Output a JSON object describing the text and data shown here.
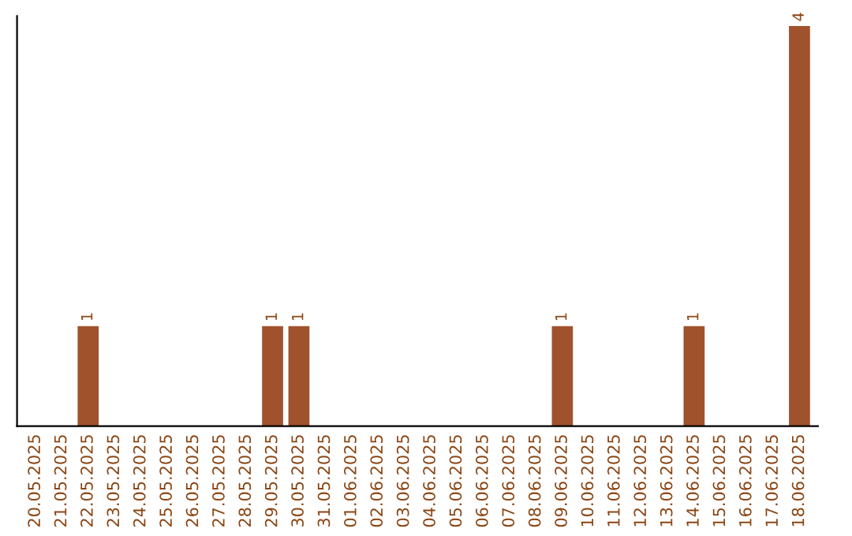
{
  "chart_data": {
    "type": "bar",
    "categories": [
      "20.05.2025",
      "21.05.2025",
      "22.05.2025",
      "23.05.2025",
      "24.05.2025",
      "25.05.2025",
      "26.05.2025",
      "27.05.2025",
      "28.05.2025",
      "29.05.2025",
      "30.05.2025",
      "31.05.2025",
      "01.06.2025",
      "02.06.2025",
      "03.06.2025",
      "04.06.2025",
      "05.06.2025",
      "06.06.2025",
      "07.06.2025",
      "08.06.2025",
      "09.06.2025",
      "10.06.2025",
      "11.06.2025",
      "12.06.2025",
      "13.06.2025",
      "14.06.2025",
      "15.06.2025",
      "16.06.2025",
      "17.06.2025",
      "18.06.2025"
    ],
    "values": [
      0,
      0,
      1,
      0,
      0,
      0,
      0,
      0,
      0,
      1,
      1,
      0,
      0,
      0,
      0,
      0,
      0,
      0,
      0,
      0,
      1,
      0,
      0,
      0,
      0,
      1,
      0,
      0,
      0,
      4
    ],
    "value_labels": [
      null,
      null,
      "1",
      null,
      null,
      null,
      null,
      null,
      null,
      "1",
      "1",
      null,
      null,
      null,
      null,
      null,
      null,
      null,
      null,
      null,
      "1",
      null,
      null,
      null,
      null,
      "1",
      null,
      null,
      null,
      "4"
    ],
    "color": "#a0522d",
    "ylim": [
      0,
      4.1
    ],
    "tick_labels": "x",
    "grid": false
  }
}
